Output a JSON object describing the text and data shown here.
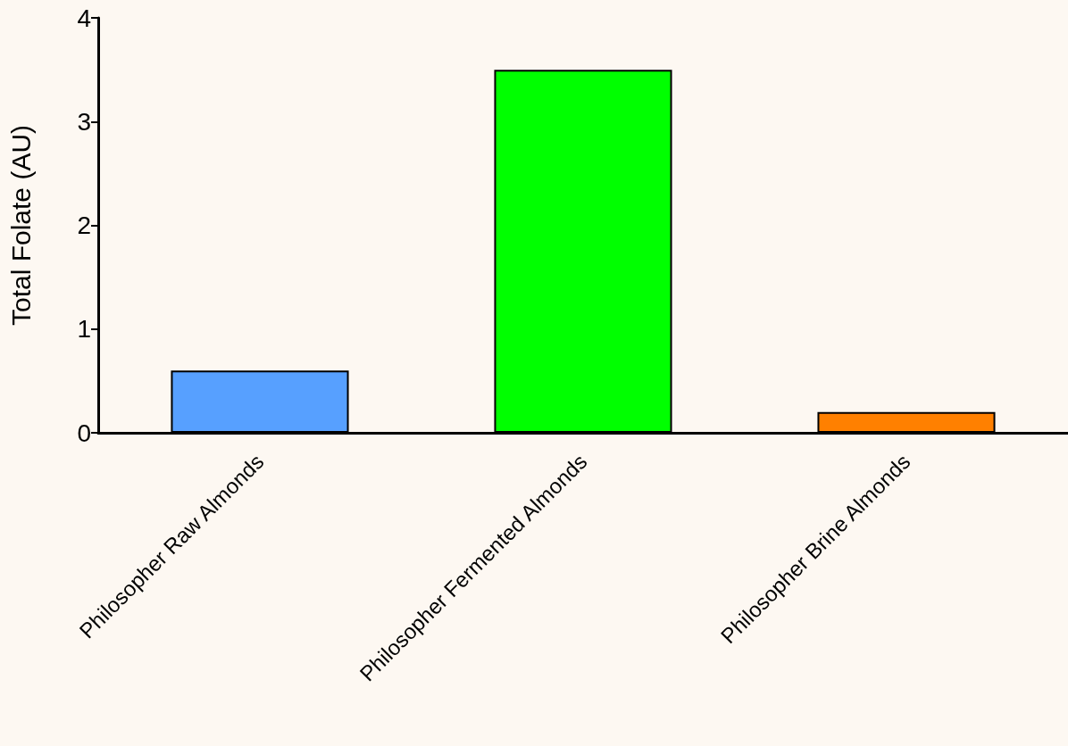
{
  "chart_data": {
    "type": "bar",
    "ylabel": "Total Folate (AU)",
    "categories": [
      "Philosopher Raw Almonds",
      "Philosopher Fermented Almonds",
      "Philosopher Brine Almonds"
    ],
    "values": [
      0.6,
      3.5,
      0.2
    ],
    "colors": [
      "#57a0ff",
      "#00ff00",
      "#ff8000"
    ],
    "ylim": [
      0,
      4
    ],
    "yticks": [
      0,
      1,
      2,
      3,
      4
    ],
    "grid": false
  }
}
